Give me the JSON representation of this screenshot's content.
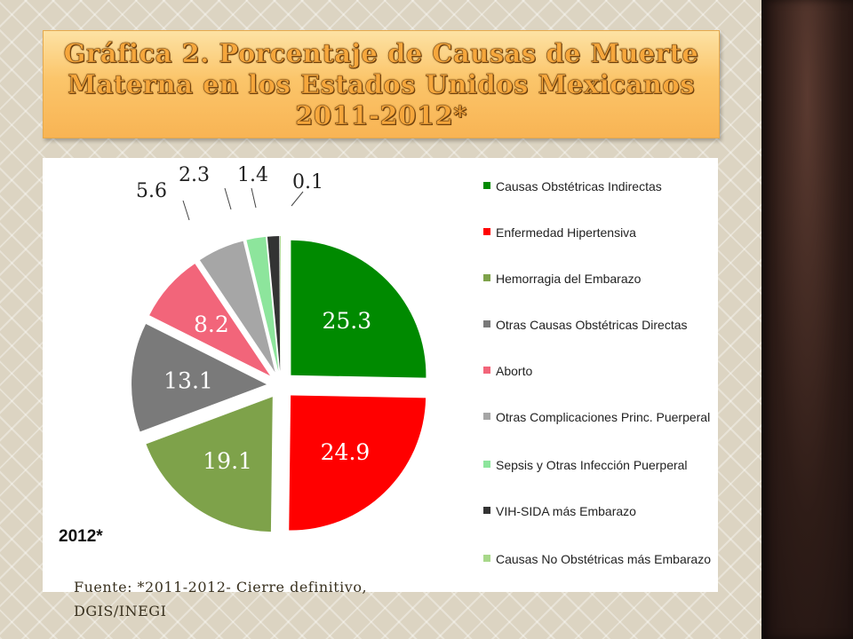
{
  "title": "Gráfica 2. Porcentaje de Causas de Muerte Materna en los Estados Unidos Mexicanos 2011-2012*",
  "source": "Fuente: *2011-2012- Cierre definitivo, DGIS/INEGI",
  "chart_data": {
    "type": "pie",
    "year_label": "2012*",
    "legend_position": "right",
    "slices": [
      {
        "label": "Causas Obstétricas Indirectas",
        "value": 25.3,
        "value_label": "25.3",
        "color": "#008a00"
      },
      {
        "label": "Enfermedad Hipertensiva",
        "value": 24.9,
        "value_label": "24.9",
        "color": "#ff0000"
      },
      {
        "label": "Hemorragia del Embarazo",
        "value": 19.1,
        "value_label": "19.1",
        "color": "#7ea24a"
      },
      {
        "label": "Otras Causas Obstétricas Directas",
        "value": 13.1,
        "value_label": "13.1",
        "color": "#7a7a7a"
      },
      {
        "label": "Aborto",
        "value": 8.2,
        "value_label": "8.2",
        "color": "#f2657a"
      },
      {
        "label": "Otras Complicaciones Princ. Puerperal",
        "value": 5.6,
        "value_label": "5.6",
        "color": "#a6a6a6"
      },
      {
        "label": "Sepsis y Otras Infección Puerperal",
        "value": 2.3,
        "value_label": "2.3",
        "color": "#8de59c"
      },
      {
        "label": "VIH-SIDA más Embarazo",
        "value": 1.4,
        "value_label": "1.4",
        "color": "#333333"
      },
      {
        "label": "Causas No Obstétricas más Embarazo",
        "value": 0.1,
        "value_label": "0.1",
        "color": "#a8d88a"
      }
    ]
  }
}
